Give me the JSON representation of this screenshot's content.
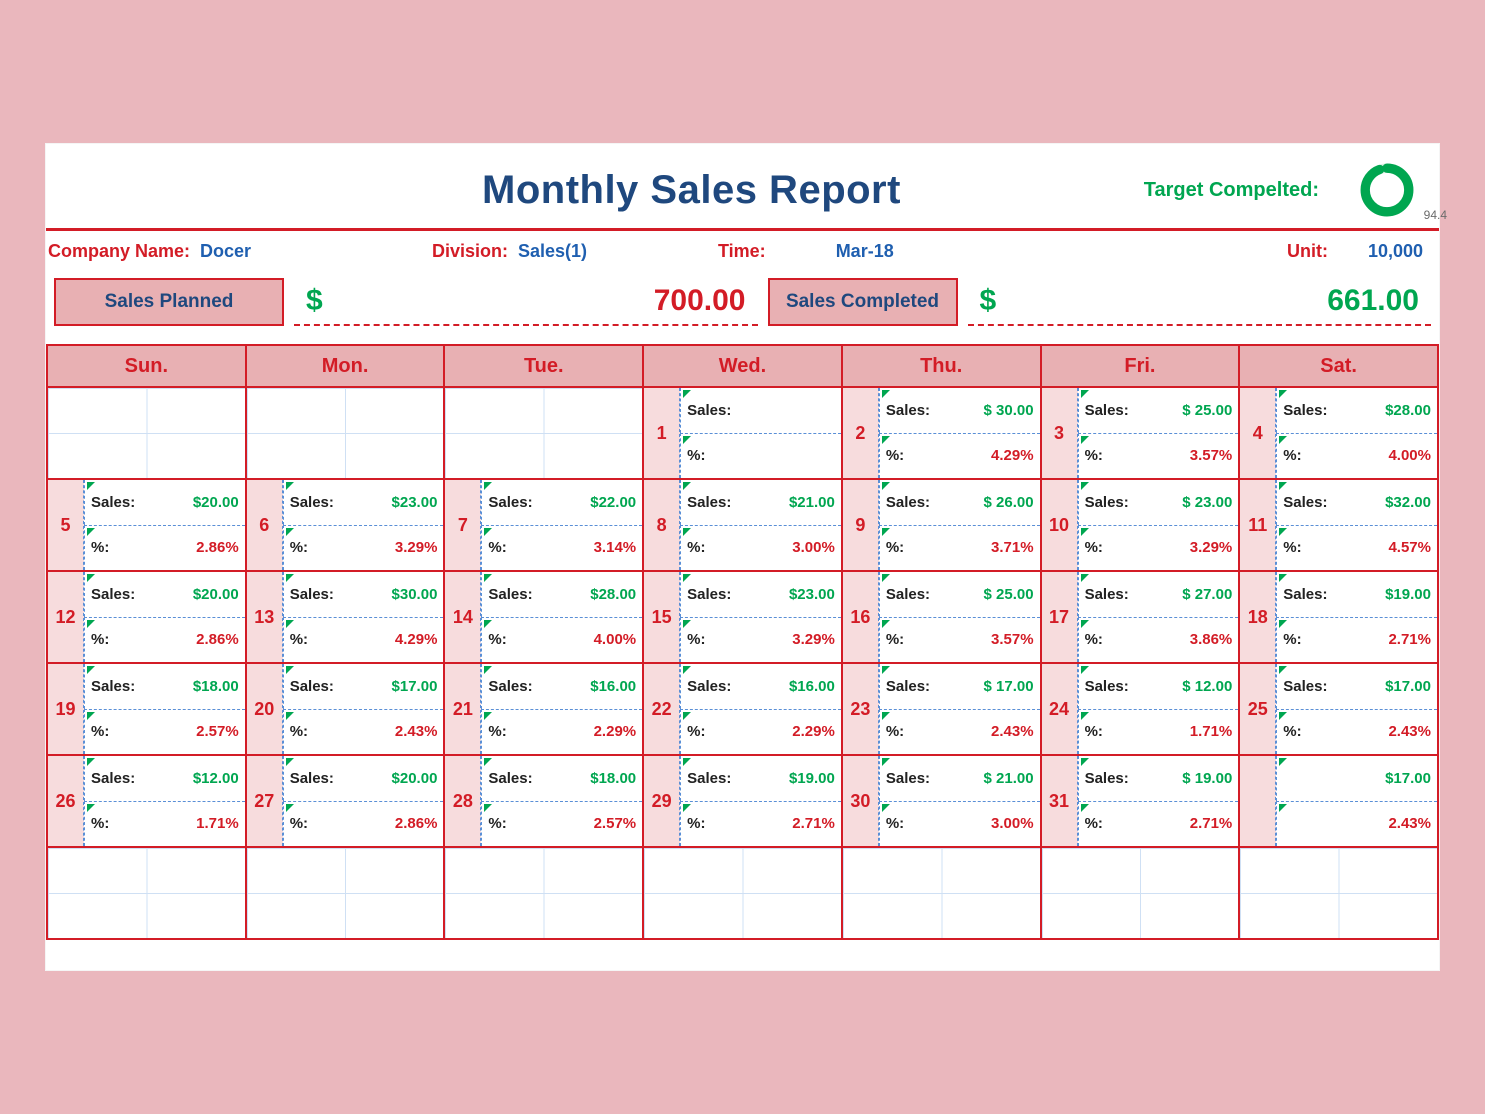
{
  "title": "Monthly Sales Report",
  "target_label": "Target Compelted:",
  "target_pct_text": "94.4",
  "target_pct_value": 94.4,
  "colors": {
    "green": "#00a650",
    "red": "#d31c26",
    "navy": "#1f487e",
    "blue_link": "#1f5fb0",
    "pink_bg": "#e8b0b3",
    "page_bg": "#eab7bd",
    "daycol_bg": "#f7dcdd",
    "grid_blue": "#5a8fd6"
  },
  "meta": {
    "company_label": "Company Name:",
    "company_value": "Docer",
    "division_label": "Division:",
    "division_value": "Sales(1)",
    "time_label": "Time:",
    "time_value": "Mar-18",
    "unit_label": "Unit:",
    "unit_value": "10,000"
  },
  "totals": {
    "planned_label": "Sales Planned",
    "planned_currency": "$",
    "planned_value": "700.00",
    "completed_label": "Sales Completed",
    "completed_currency": "$",
    "completed_value": "661.00"
  },
  "days_header": [
    "Sun.",
    "Mon.",
    "Tue.",
    "Wed.",
    "Thu.",
    "Fri.",
    "Sat."
  ],
  "row_labels": {
    "sales": "Sales:",
    "pct": "%:"
  },
  "calendar": [
    [
      {
        "blank": true
      },
      {
        "blank": true
      },
      {
        "blank": true
      },
      {
        "day": 1,
        "sales": "",
        "pct": ""
      },
      {
        "day": 2,
        "sales": "$ 30.00",
        "pct": "4.29%"
      },
      {
        "day": 3,
        "sales": "$   25.00",
        "pct": "3.57%"
      },
      {
        "day": 4,
        "sales": "$28.00",
        "pct": "4.00%"
      }
    ],
    [
      {
        "day": 5,
        "sales": "$20.00",
        "pct": "2.86%"
      },
      {
        "day": 6,
        "sales": "$23.00",
        "pct": "3.29%"
      },
      {
        "day": 7,
        "sales": "$22.00",
        "pct": "3.14%"
      },
      {
        "day": 8,
        "sales": "$21.00",
        "pct": "3.00%"
      },
      {
        "day": 9,
        "sales": "$ 26.00",
        "pct": "3.71%"
      },
      {
        "day": 10,
        "sales": "$   23.00",
        "pct": "3.29%"
      },
      {
        "day": 11,
        "sales": "$32.00",
        "pct": "4.57%"
      }
    ],
    [
      {
        "day": 12,
        "sales": "$20.00",
        "pct": "2.86%"
      },
      {
        "day": 13,
        "sales": "$30.00",
        "pct": "4.29%"
      },
      {
        "day": 14,
        "sales": "$28.00",
        "pct": "4.00%"
      },
      {
        "day": 15,
        "sales": "$23.00",
        "pct": "3.29%"
      },
      {
        "day": 16,
        "sales": "$ 25.00",
        "pct": "3.57%"
      },
      {
        "day": 17,
        "sales": "$   27.00",
        "pct": "3.86%"
      },
      {
        "day": 18,
        "sales": "$19.00",
        "pct": "2.71%"
      }
    ],
    [
      {
        "day": 19,
        "sales": "$18.00",
        "pct": "2.57%"
      },
      {
        "day": 20,
        "sales": "$17.00",
        "pct": "2.43%"
      },
      {
        "day": 21,
        "sales": "$16.00",
        "pct": "2.29%"
      },
      {
        "day": 22,
        "sales": "$16.00",
        "pct": "2.29%"
      },
      {
        "day": 23,
        "sales": "$ 17.00",
        "pct": "2.43%"
      },
      {
        "day": 24,
        "sales": "$   12.00",
        "pct": "1.71%"
      },
      {
        "day": 25,
        "sales": "$17.00",
        "pct": "2.43%"
      }
    ],
    [
      {
        "day": 26,
        "sales": "$12.00",
        "pct": "1.71%"
      },
      {
        "day": 27,
        "sales": "$20.00",
        "pct": "2.86%"
      },
      {
        "day": 28,
        "sales": "$18.00",
        "pct": "2.57%"
      },
      {
        "day": 29,
        "sales": "$19.00",
        "pct": "2.71%"
      },
      {
        "day": 30,
        "sales": "$ 21.00",
        "pct": "3.00%"
      },
      {
        "day": 31,
        "sales": "$   19.00",
        "pct": "2.71%"
      },
      {
        "noNum": true,
        "sales": "$17.00",
        "pct": "2.43%"
      }
    ],
    [
      {
        "blank": true
      },
      {
        "blank": true
      },
      {
        "blank": true
      },
      {
        "blank": true
      },
      {
        "blank": true
      },
      {
        "blank": true
      },
      {
        "blank": true
      }
    ]
  ]
}
